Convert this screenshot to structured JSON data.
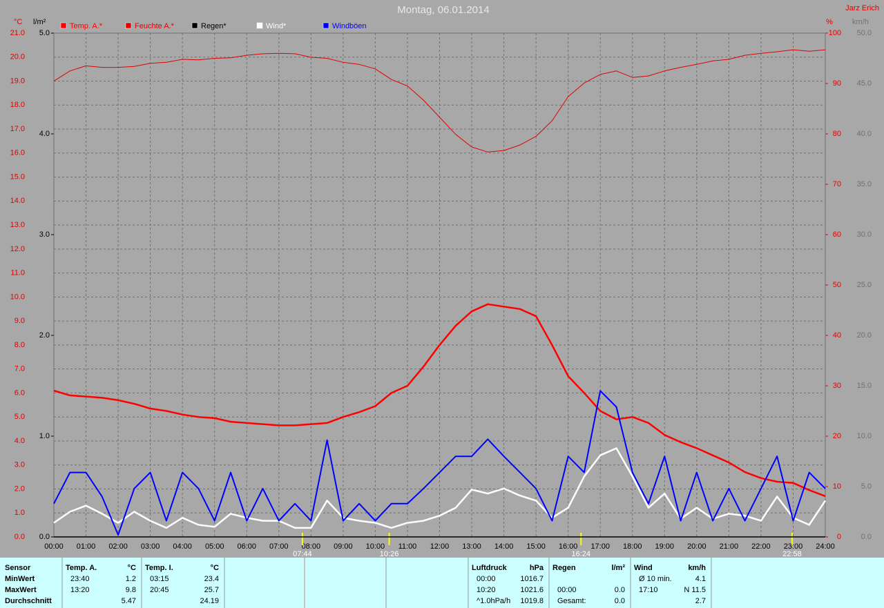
{
  "chart_data": {
    "type": "line",
    "title": "Montag, 06.01.2014",
    "author": "Jarz Erich",
    "y_unit": "°C",
    "y2_unit": "%",
    "y3_unit": "km/h",
    "y4_unit": "l/m²",
    "x": [
      0,
      0.5,
      1,
      1.5,
      2,
      2.5,
      3,
      3.5,
      4,
      4.5,
      5,
      5.5,
      6,
      6.5,
      7,
      7.5,
      8,
      8.5,
      9,
      9.5,
      10,
      10.5,
      11,
      11.5,
      12,
      12.5,
      13,
      13.5,
      14,
      14.5,
      15,
      15.5,
      16,
      16.5,
      17,
      17.5,
      18,
      18.5,
      19,
      19.5,
      20,
      20.5,
      21,
      21.5,
      22,
      22.5,
      23,
      23.5,
      24
    ],
    "xlim": [
      0,
      24
    ],
    "xticks": [
      {
        "value": 0,
        "label": "00:00"
      },
      {
        "value": 1,
        "label": "01:00"
      },
      {
        "value": 2,
        "label": "02:00"
      },
      {
        "value": 3,
        "label": "03:00"
      },
      {
        "value": 4,
        "label": "04:00"
      },
      {
        "value": 5,
        "label": "05:00"
      },
      {
        "value": 6,
        "label": "06:00"
      },
      {
        "value": 7,
        "label": "07:00"
      },
      {
        "value": 8,
        "label": "08:00"
      },
      {
        "value": 9,
        "label": "09:00"
      },
      {
        "value": 10,
        "label": "10:00"
      },
      {
        "value": 11,
        "label": "11:00"
      },
      {
        "value": 12,
        "label": "12:00"
      },
      {
        "value": 13,
        "label": "13:00"
      },
      {
        "value": 14,
        "label": "14:00"
      },
      {
        "value": 15,
        "label": "15:00"
      },
      {
        "value": 16,
        "label": "16:00"
      },
      {
        "value": 17,
        "label": "17:00"
      },
      {
        "value": 18,
        "label": "18:00"
      },
      {
        "value": 19,
        "label": "19:00"
      },
      {
        "value": 20,
        "label": "20:00"
      },
      {
        "value": 21,
        "label": "21:00"
      },
      {
        "value": 22,
        "label": "22:00"
      },
      {
        "value": 23,
        "label": "23:00"
      },
      {
        "value": 24,
        "label": "24:00"
      }
    ],
    "ylim": [
      0,
      21
    ],
    "yticks": [
      {
        "value": 0,
        "label": "0.0"
      },
      {
        "value": 1,
        "label": "1.0"
      },
      {
        "value": 2,
        "label": "2.0"
      },
      {
        "value": 3,
        "label": "3.0"
      },
      {
        "value": 4,
        "label": "4.0"
      },
      {
        "value": 5,
        "label": "5.0"
      },
      {
        "value": 6,
        "label": "6.0"
      },
      {
        "value": 7,
        "label": "7.0"
      },
      {
        "value": 8,
        "label": "8.0"
      },
      {
        "value": 9,
        "label": "9.0"
      },
      {
        "value": 10,
        "label": "10.0"
      },
      {
        "value": 11,
        "label": "11.0"
      },
      {
        "value": 12,
        "label": "12.0"
      },
      {
        "value": 13,
        "label": "13.0"
      },
      {
        "value": 14,
        "label": "14.0"
      },
      {
        "value": 15,
        "label": "15.0"
      },
      {
        "value": 16,
        "label": "16.0"
      },
      {
        "value": 17,
        "label": "17.0"
      },
      {
        "value": 18,
        "label": "18.0"
      },
      {
        "value": 19,
        "label": "19.0"
      },
      {
        "value": 20,
        "label": "20.0"
      },
      {
        "value": 21,
        "label": "21.0"
      }
    ],
    "y2lim": [
      0,
      100
    ],
    "y2ticks": [
      0,
      10,
      20,
      30,
      40,
      50,
      60,
      70,
      80,
      90,
      100
    ],
    "y3lim": [
      0,
      50
    ],
    "y3ticks": [
      {
        "value": 0,
        "label": "0.0"
      },
      {
        "value": 5,
        "label": "5.0"
      },
      {
        "value": 10,
        "label": "10.0"
      },
      {
        "value": 15,
        "label": "15.0"
      },
      {
        "value": 20,
        "label": "20.0"
      },
      {
        "value": 25,
        "label": "25.0"
      },
      {
        "value": 30,
        "label": "30.0"
      },
      {
        "value": 35,
        "label": "35.0"
      },
      {
        "value": 40,
        "label": "40.0"
      },
      {
        "value": 45,
        "label": "45.0"
      },
      {
        "value": 50,
        "label": "50.0"
      }
    ],
    "y4lim": [
      0,
      5
    ],
    "y4ticks": [
      {
        "value": 0,
        "label": "0.0"
      },
      {
        "value": 1,
        "label": "1.0"
      },
      {
        "value": 2,
        "label": "2.0"
      },
      {
        "value": 3,
        "label": "3.0"
      },
      {
        "value": 4,
        "label": "4.0"
      },
      {
        "value": 5,
        "label": "5.0"
      }
    ],
    "grid": true,
    "series": [
      {
        "name": "Temp. A.*",
        "color": "#ff0000",
        "axis": "y",
        "width": 2.5,
        "values": [
          6.1,
          5.9,
          5.85,
          5.8,
          5.7,
          5.55,
          5.35,
          5.25,
          5.1,
          5.0,
          4.95,
          4.8,
          4.75,
          4.7,
          4.65,
          4.65,
          4.7,
          4.75,
          5.0,
          5.2,
          5.45,
          6.0,
          6.3,
          7.1,
          8.0,
          8.8,
          9.4,
          9.7,
          9.6,
          9.5,
          9.2,
          8.0,
          6.7,
          6.0,
          5.25,
          4.9,
          5.0,
          4.75,
          4.25,
          3.95,
          3.7,
          3.4,
          3.1,
          2.7,
          2.45,
          2.3,
          2.25,
          1.95,
          1.7
        ]
      },
      {
        "name": "Feuchte A.*",
        "color": "#e00000",
        "axis": "y2",
        "width": 1,
        "values": [
          90.5,
          92.5,
          93.5,
          93.2,
          93.2,
          93.4,
          94,
          94.2,
          94.8,
          94.7,
          95,
          95.1,
          95.6,
          95.9,
          96,
          95.9,
          95.2,
          95,
          94.2,
          93.8,
          92.9,
          90.8,
          89.5,
          86.7,
          83.3,
          79.9,
          77.4,
          76.4,
          76.7,
          77.8,
          79.5,
          82.6,
          87.4,
          90.1,
          91.8,
          92.5,
          91.2,
          91.5,
          92.5,
          93.2,
          93.8,
          94.5,
          94.8,
          95.6,
          96,
          96.3,
          96.7,
          96.4,
          96.7
        ]
      },
      {
        "name": "Regen*",
        "color": "#000000",
        "axis": "y4",
        "width": 1.5,
        "values": [
          0,
          0,
          0,
          0,
          0,
          0,
          0,
          0,
          0,
          0,
          0,
          0,
          0,
          0,
          0,
          0,
          0,
          0,
          0,
          0,
          0,
          0,
          0,
          0,
          0,
          0,
          0,
          0,
          0,
          0,
          0,
          0,
          0,
          0,
          0,
          0,
          0,
          0,
          0,
          0,
          0,
          0,
          0,
          0,
          0,
          0,
          0,
          0,
          0
        ]
      },
      {
        "name": "Wind*",
        "color": "#ffffff",
        "axis": "y3",
        "width": 2.5,
        "values": [
          1.4,
          2.5,
          3.1,
          2.3,
          1.4,
          2.5,
          1.6,
          0.9,
          1.9,
          1.2,
          1.0,
          2.3,
          1.9,
          1.6,
          1.6,
          0.9,
          0.9,
          3.6,
          1.9,
          1.6,
          1.4,
          0.9,
          1.4,
          1.6,
          2.1,
          2.9,
          4.7,
          4.3,
          4.8,
          4.1,
          3.6,
          1.9,
          2.9,
          6.0,
          8.1,
          8.8,
          6.0,
          2.9,
          4.3,
          1.8,
          2.9,
          1.8,
          2.3,
          2.1,
          1.6,
          4.0,
          1.9,
          1.2,
          3.6
        ]
      },
      {
        "name": "Windböen",
        "color": "#0000ff",
        "axis": "y3",
        "width": 2,
        "values": [
          3.3,
          6.4,
          6.4,
          4.0,
          0.2,
          4.8,
          6.4,
          1.6,
          6.4,
          4.8,
          1.6,
          6.4,
          1.6,
          4.8,
          1.6,
          3.3,
          1.6,
          9.6,
          1.6,
          3.3,
          1.6,
          3.3,
          3.3,
          4.8,
          6.4,
          8.0,
          8.0,
          9.7,
          8.0,
          6.4,
          4.8,
          1.6,
          8.0,
          6.4,
          14.5,
          12.9,
          6.4,
          3.3,
          8.0,
          1.6,
          6.4,
          1.6,
          4.8,
          1.6,
          4.8,
          8.0,
          1.6,
          6.4,
          4.8
        ]
      }
    ],
    "markers": [
      {
        "x": 7.733,
        "label": "07:44"
      },
      {
        "x": 10.433,
        "label": "10:26"
      },
      {
        "x": 16.4,
        "label": "16:24"
      },
      {
        "x": 22.967,
        "label": "22:58"
      }
    ]
  },
  "stats": {
    "row_labels": [
      "Sensor",
      "MinWert",
      "MaxWert",
      "Durchschnitt"
    ],
    "groups": [
      {
        "header": "Temp. A.",
        "unit": "°C",
        "rows": [
          [
            "23:40",
            "1.2"
          ],
          [
            "13:20",
            "9.8"
          ],
          [
            null,
            "5.47"
          ]
        ]
      },
      {
        "header": "Temp. I.",
        "unit": "°C",
        "rows": [
          [
            "03:15",
            "23.4"
          ],
          [
            "20:45",
            "25.7"
          ],
          [
            null,
            "24.19"
          ]
        ]
      },
      {
        "header": "Luftdruck",
        "unit": "hPa",
        "rows": [
          [
            "00:00",
            "1016.7"
          ],
          [
            "10:20",
            "1021.6"
          ],
          [
            "^1.0hPa/h",
            "1019.8"
          ]
        ]
      },
      {
        "header": "Regen",
        "unit": "l/m²",
        "rows": [
          [
            null,
            null
          ],
          [
            "00:00",
            "0.0"
          ],
          [
            "Gesamt:",
            "0.0"
          ]
        ]
      },
      {
        "header": "Wind",
        "unit": "km/h",
        "rows": [
          [
            "Ø 10 min.",
            "4.1"
          ],
          [
            "17:10",
            "N 11.5"
          ],
          [
            null,
            "2.7"
          ]
        ]
      }
    ]
  }
}
